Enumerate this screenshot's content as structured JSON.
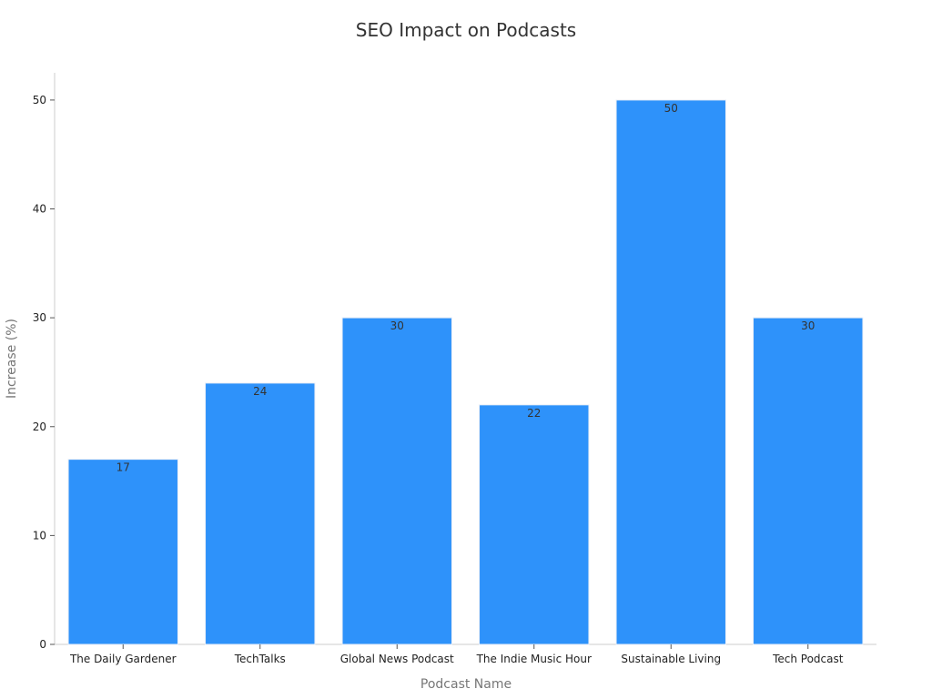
{
  "chart_data": {
    "type": "bar",
    "title": "SEO Impact on Podcasts",
    "xlabel": "Podcast Name",
    "ylabel": "Increase (%)",
    "categories": [
      "The Daily Gardener",
      "TechTalks",
      "Global News Podcast",
      "The Indie Music Hour",
      "Sustainable Living",
      "Tech Podcast"
    ],
    "values": [
      17,
      24,
      30,
      22,
      50,
      30
    ],
    "data_labels": [
      "17",
      "24",
      "30",
      "22",
      "50",
      "30"
    ],
    "ylim": [
      0,
      52.5
    ],
    "yticks": [
      0,
      10,
      20,
      30,
      40,
      50
    ],
    "ytick_labels": [
      "0",
      "10",
      "20",
      "30",
      "40",
      "50"
    ],
    "grid": false,
    "legend": "none",
    "bar_color": "#2e92fa",
    "bar_edge_color": "#e8eef7"
  }
}
